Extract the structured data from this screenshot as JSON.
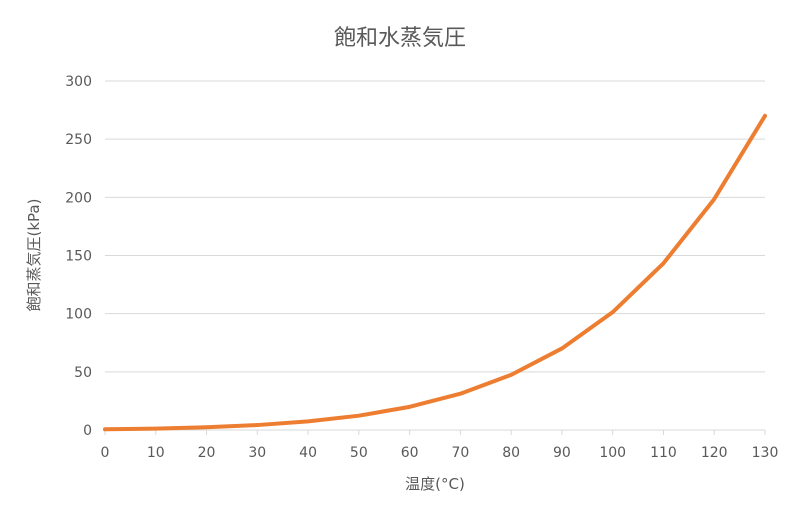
{
  "chart_data": {
    "type": "line",
    "title": "飽和水蒸気圧",
    "xlabel": "温度(°C)",
    "ylabel": "飽和蒸気圧(kPa)",
    "x": [
      0,
      10,
      20,
      30,
      40,
      50,
      60,
      70,
      80,
      90,
      100,
      110,
      120,
      130
    ],
    "x_ticks": [
      "0",
      "10",
      "20",
      "30",
      "40",
      "50",
      "60",
      "70",
      "80",
      "90",
      "100",
      "110",
      "120",
      "130"
    ],
    "y_ticks": [
      "0",
      "50",
      "100",
      "150",
      "200",
      "250",
      "300"
    ],
    "xlim": [
      0,
      130
    ],
    "ylim": [
      0,
      300
    ],
    "grid": true,
    "series": [
      {
        "values": [
          0.61,
          1.23,
          2.34,
          4.25,
          7.38,
          12.3,
          19.9,
          31.2,
          47.4,
          70.1,
          101.3,
          143.3,
          198.5,
          270.1
        ],
        "color": "#ED7D31"
      }
    ],
    "gridline_color": "#D9D9D9",
    "text_color": "#595959"
  }
}
